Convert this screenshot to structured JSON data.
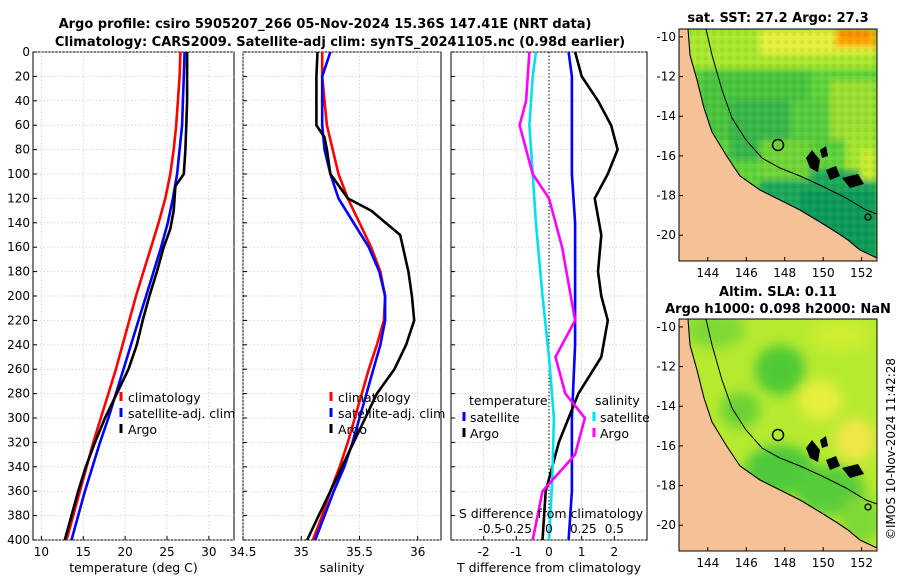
{
  "figure": {
    "title_line1": "Argo profile: csiro 5905207_266 05-Nov-2024 15.36S 147.41E (NRT data)",
    "title_line2": "Climatology: CARS2009. Satellite-adj clim: synTS_20241105.nc (0.98d earlier)",
    "imos_stamp": "©IMOS 10-Nov-2024 11:42:28"
  },
  "colors": {
    "climatology": "#ff0000",
    "satellite": "#0000ff",
    "argo": "#000000",
    "salinity_satellite": "#00e0f0",
    "salinity_argo": "#ff00ff",
    "land": "#f5c196"
  },
  "chart_data": [
    {
      "id": "temperature_profile",
      "type": "line",
      "xlabel": "temperature (deg C)",
      "ylabel": "",
      "xlim": [
        9,
        33
      ],
      "ylim": [
        400,
        0
      ],
      "xticks": [
        10,
        15,
        20,
        25,
        30
      ],
      "yticks": [
        0,
        20,
        40,
        60,
        80,
        100,
        120,
        140,
        160,
        180,
        200,
        220,
        240,
        260,
        280,
        300,
        320,
        340,
        360,
        380,
        400
      ],
      "grid": true,
      "legend_position": "lower-right",
      "legend": [
        "climatology",
        "satellite-adj. clim",
        "Argo"
      ],
      "series": [
        {
          "name": "climatology",
          "color": "#ff0000",
          "points": [
            [
              26.6,
              0
            ],
            [
              26.5,
              20
            ],
            [
              26.3,
              40
            ],
            [
              26.1,
              60
            ],
            [
              25.8,
              80
            ],
            [
              25.4,
              100
            ],
            [
              24.8,
              120
            ],
            [
              24.0,
              140
            ],
            [
              23.1,
              160
            ],
            [
              22.2,
              180
            ],
            [
              21.3,
              200
            ],
            [
              20.5,
              220
            ],
            [
              19.7,
              240
            ],
            [
              18.9,
              260
            ],
            [
              18.0,
              280
            ],
            [
              17.1,
              300
            ],
            [
              16.2,
              320
            ],
            [
              15.4,
              340
            ],
            [
              14.6,
              360
            ],
            [
              13.8,
              380
            ],
            [
              13.0,
              400
            ]
          ]
        },
        {
          "name": "satellite-adj. clim",
          "color": "#0000ff",
          "points": [
            [
              27.1,
              0
            ],
            [
              27.0,
              20
            ],
            [
              26.9,
              40
            ],
            [
              26.8,
              60
            ],
            [
              26.5,
              80
            ],
            [
              26.2,
              100
            ],
            [
              25.7,
              120
            ],
            [
              25.1,
              140
            ],
            [
              24.3,
              160
            ],
            [
              23.4,
              180
            ],
            [
              22.5,
              200
            ],
            [
              21.6,
              220
            ],
            [
              20.7,
              240
            ],
            [
              19.8,
              260
            ],
            [
              18.9,
              280
            ],
            [
              18.0,
              300
            ],
            [
              17.0,
              320
            ],
            [
              16.1,
              340
            ],
            [
              15.2,
              360
            ],
            [
              14.4,
              380
            ],
            [
              13.6,
              400
            ]
          ]
        },
        {
          "name": "Argo",
          "color": "#000000",
          "points": [
            [
              27.4,
              0
            ],
            [
              27.4,
              20
            ],
            [
              27.4,
              40
            ],
            [
              27.3,
              60
            ],
            [
              27.2,
              80
            ],
            [
              27.0,
              100
            ],
            [
              26.0,
              110
            ],
            [
              25.8,
              130
            ],
            [
              25.4,
              145
            ],
            [
              24.6,
              160
            ],
            [
              23.8,
              180
            ],
            [
              22.9,
              200
            ],
            [
              22.1,
              220
            ],
            [
              21.4,
              240
            ],
            [
              20.4,
              260
            ],
            [
              19.0,
              280
            ],
            [
              17.6,
              300
            ],
            [
              16.4,
              320
            ],
            [
              15.3,
              340
            ],
            [
              14.4,
              360
            ],
            [
              13.6,
              380
            ],
            [
              12.8,
              400
            ]
          ]
        }
      ]
    },
    {
      "id": "salinity_profile",
      "type": "line",
      "xlabel": "salinity",
      "ylabel": "",
      "xlim": [
        34.5,
        36.2
      ],
      "ylim": [
        400,
        0
      ],
      "xticks": [
        34.5,
        35,
        35.5,
        36
      ],
      "xticklabels": [
        "34.5",
        "35",
        "35.5",
        "36"
      ],
      "grid": true,
      "legend_position": "lower-right",
      "legend": [
        "climatology",
        "satellite-adj. clim",
        "Argo"
      ],
      "series": [
        {
          "name": "climatology",
          "color": "#ff0000",
          "points": [
            [
              35.18,
              0
            ],
            [
              35.18,
              20
            ],
            [
              35.2,
              40
            ],
            [
              35.22,
              60
            ],
            [
              35.27,
              80
            ],
            [
              35.32,
              100
            ],
            [
              35.4,
              120
            ],
            [
              35.5,
              140
            ],
            [
              35.6,
              160
            ],
            [
              35.68,
              180
            ],
            [
              35.72,
              200
            ],
            [
              35.71,
              220
            ],
            [
              35.65,
              240
            ],
            [
              35.58,
              260
            ],
            [
              35.52,
              280
            ],
            [
              35.46,
              300
            ],
            [
              35.4,
              320
            ],
            [
              35.33,
              340
            ],
            [
              35.25,
              360
            ],
            [
              35.18,
              380
            ],
            [
              35.1,
              400
            ]
          ]
        },
        {
          "name": "satellite-adj. clim",
          "color": "#0000ff",
          "points": [
            [
              35.25,
              0
            ],
            [
              35.18,
              20
            ],
            [
              35.18,
              40
            ],
            [
              35.18,
              60
            ],
            [
              35.2,
              80
            ],
            [
              35.25,
              100
            ],
            [
              35.32,
              120
            ],
            [
              35.45,
              140
            ],
            [
              35.58,
              160
            ],
            [
              35.67,
              180
            ],
            [
              35.72,
              200
            ],
            [
              35.72,
              220
            ],
            [
              35.68,
              240
            ],
            [
              35.62,
              260
            ],
            [
              35.56,
              280
            ],
            [
              35.5,
              300
            ],
            [
              35.44,
              320
            ],
            [
              35.37,
              340
            ],
            [
              35.28,
              360
            ],
            [
              35.2,
              380
            ],
            [
              35.12,
              400
            ]
          ]
        },
        {
          "name": "Argo",
          "color": "#000000",
          "points": [
            [
              35.14,
              0
            ],
            [
              35.13,
              20
            ],
            [
              35.13,
              40
            ],
            [
              35.13,
              60
            ],
            [
              35.2,
              70
            ],
            [
              35.22,
              80
            ],
            [
              35.25,
              100
            ],
            [
              35.4,
              120
            ],
            [
              35.6,
              130
            ],
            [
              35.85,
              150
            ],
            [
              35.92,
              180
            ],
            [
              35.95,
              200
            ],
            [
              35.97,
              220
            ],
            [
              35.9,
              240
            ],
            [
              35.8,
              260
            ],
            [
              35.65,
              280
            ],
            [
              35.55,
              300
            ],
            [
              35.45,
              320
            ],
            [
              35.35,
              340
            ],
            [
              35.25,
              360
            ],
            [
              35.15,
              380
            ],
            [
              35.05,
              400
            ]
          ]
        }
      ]
    },
    {
      "id": "difference_profile",
      "type": "line",
      "xlabel": "T difference from climatology",
      "xlabel_top": "S difference from climatology",
      "xlim": [
        -3,
        3
      ],
      "ylim": [
        400,
        0
      ],
      "xticks": [
        -2,
        -1,
        0,
        1,
        2
      ],
      "s_ticks": [
        "-0.5",
        "-0.25",
        "0",
        "0.25",
        "0.5"
      ],
      "grid": true,
      "legend_temperature": {
        "title": "temperature",
        "items": [
          "satellite",
          "Argo"
        ]
      },
      "legend_salinity": {
        "title": "salinity",
        "items": [
          "satellite",
          "Argo"
        ]
      },
      "series": [
        {
          "name": "temperature satellite",
          "color": "#0000ff",
          "points": [
            [
              0.6,
              0
            ],
            [
              0.7,
              20
            ],
            [
              0.7,
              60
            ],
            [
              0.7,
              100
            ],
            [
              0.8,
              140
            ],
            [
              0.8,
              200
            ],
            [
              0.8,
              240
            ],
            [
              0.7,
              300
            ],
            [
              0.7,
              360
            ],
            [
              0.6,
              400
            ]
          ]
        },
        {
          "name": "temperature Argo",
          "color": "#000000",
          "points": [
            [
              0.8,
              0
            ],
            [
              1.0,
              20
            ],
            [
              1.5,
              40
            ],
            [
              1.9,
              60
            ],
            [
              2.1,
              80
            ],
            [
              1.8,
              100
            ],
            [
              1.4,
              120
            ],
            [
              1.6,
              150
            ],
            [
              1.5,
              180
            ],
            [
              1.6,
              200
            ],
            [
              1.8,
              220
            ],
            [
              1.6,
              250
            ],
            [
              0.9,
              280
            ],
            [
              0.6,
              300
            ],
            [
              0.3,
              320
            ],
            [
              -0.1,
              360
            ],
            [
              -0.2,
              400
            ]
          ]
        },
        {
          "name": "salinity satellite",
          "color": "#00e0f0",
          "points": [
            [
              -0.4,
              0
            ],
            [
              -0.5,
              20
            ],
            [
              -0.6,
              60
            ],
            [
              -0.5,
              100
            ],
            [
              -0.4,
              140
            ],
            [
              -0.2,
              200
            ],
            [
              0,
              250
            ],
            [
              0.15,
              300
            ],
            [
              0.1,
              350
            ],
            [
              0,
              400
            ]
          ]
        },
        {
          "name": "salinity Argo",
          "color": "#ff00ff",
          "points": [
            [
              -0.6,
              0
            ],
            [
              -0.7,
              40
            ],
            [
              -0.9,
              60
            ],
            [
              -0.5,
              100
            ],
            [
              0.0,
              120
            ],
            [
              0.4,
              160
            ],
            [
              0.6,
              190
            ],
            [
              0.8,
              220
            ],
            [
              0.2,
              250
            ],
            [
              0.5,
              280
            ],
            [
              1.1,
              300
            ],
            [
              0.8,
              330
            ],
            [
              -0.2,
              360
            ],
            [
              -0.5,
              400
            ]
          ]
        }
      ]
    },
    {
      "id": "sst_map",
      "type": "heatmap",
      "title": "sat. SST: 27.2 Argo: 27.3",
      "xticks": [
        144,
        146,
        148,
        150,
        152
      ],
      "yticks": [
        -10,
        -12,
        -14,
        -16,
        -18,
        -20
      ],
      "xlim": [
        142.5,
        152.8
      ],
      "ylim": [
        -21.3,
        -9.6
      ],
      "argo_location": [
        147.41,
        -15.36
      ]
    },
    {
      "id": "sla_map",
      "type": "heatmap",
      "title_line1": "Altim. SLA: 0.11",
      "title_line2": "Argo h1000: 0.098 h2000: NaN",
      "xticks": [
        144,
        146,
        148,
        150,
        152
      ],
      "yticks": [
        -10,
        -12,
        -14,
        -16,
        -18,
        -20
      ],
      "xlim": [
        142.5,
        152.8
      ],
      "ylim": [
        -21.3,
        -9.6
      ],
      "argo_location": [
        147.41,
        -15.36
      ]
    }
  ]
}
